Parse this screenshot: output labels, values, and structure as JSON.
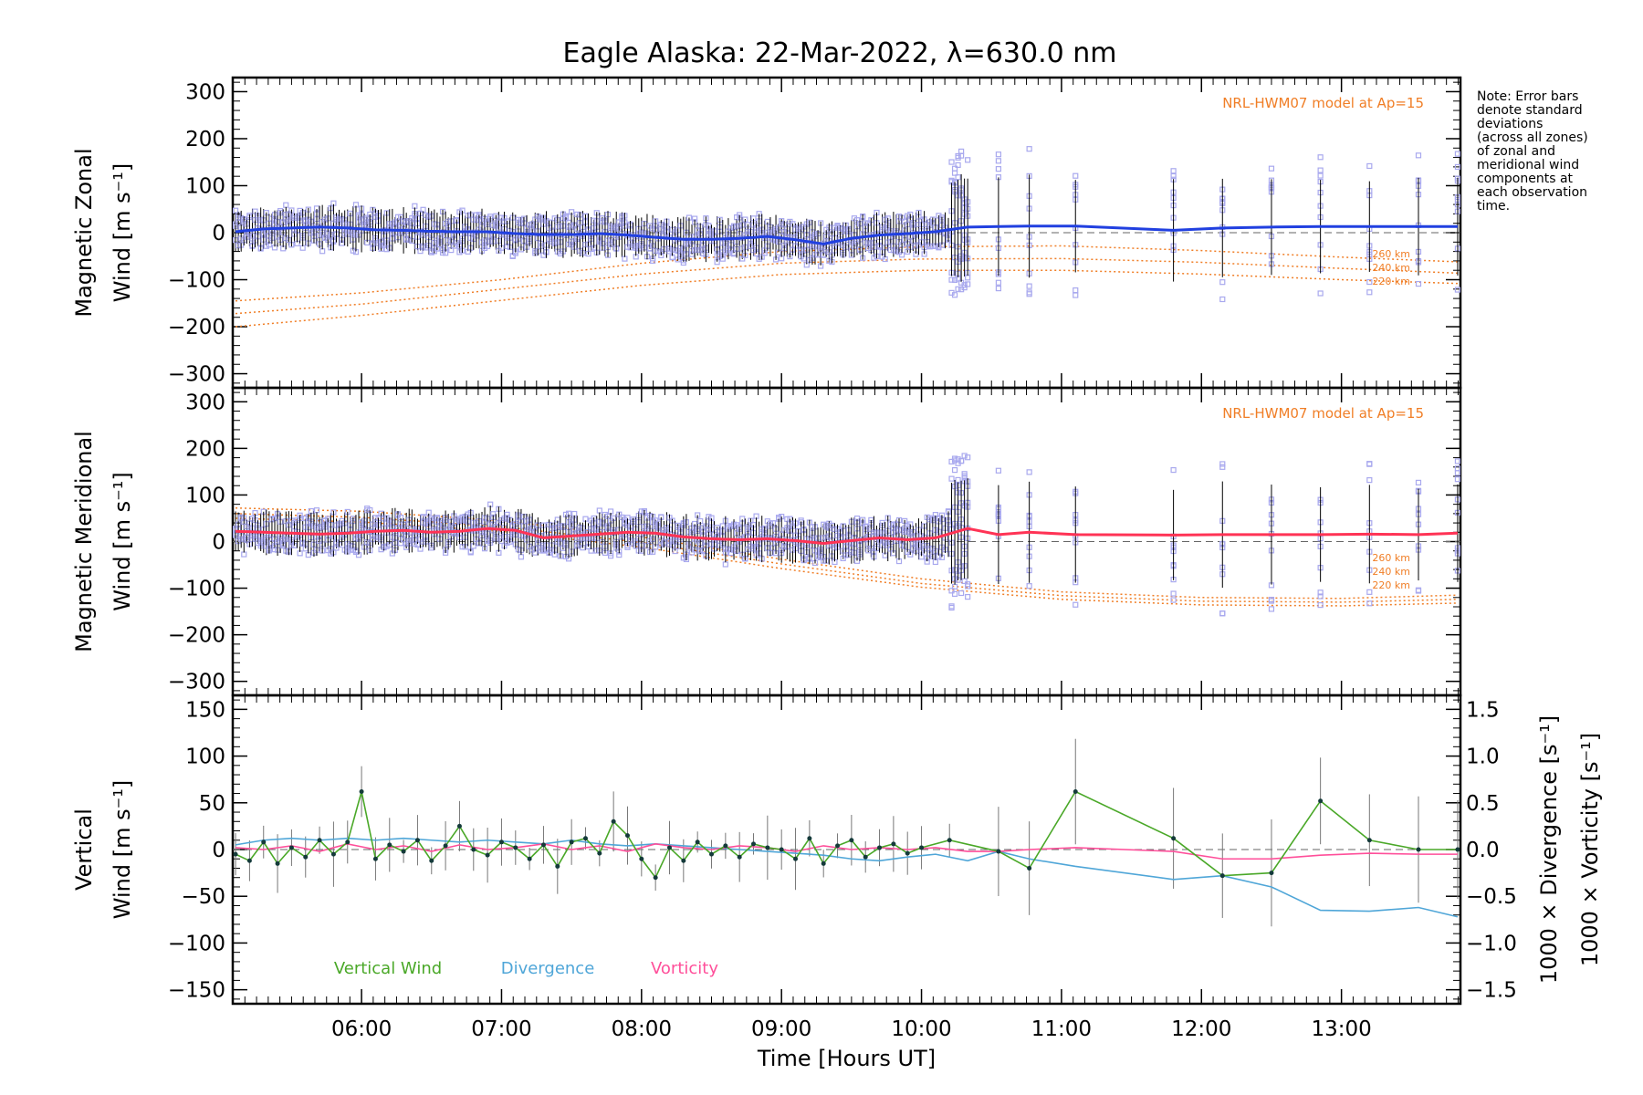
{
  "title": "Eagle Alaska: 22-Mar-2022, λ=630.0 nm",
  "note": [
    "Note: Error bars",
    "denote standard",
    "deviations",
    "(across all zones)",
    "of zonal and",
    "meridional wind",
    "components at",
    "each observation",
    "time."
  ],
  "colors": {
    "zonal": "#2140e0",
    "meridional": "#ff3355",
    "vertical": "#4aa828",
    "divergence": "#4fa6d8",
    "vorticity": "#ff4f9a",
    "model": "#f07e26",
    "zone_points": "#a9a9ee",
    "errorbar": "#000000"
  },
  "chart_data": [
    {
      "type": "line",
      "panel": "zonal",
      "ylabel_line1": "Magnetic Zonal",
      "ylabel_line2": "Wind [m s⁻¹]",
      "ylim": [
        -330,
        330
      ],
      "yticks": [
        -300,
        -200,
        -100,
        0,
        100,
        200,
        300
      ],
      "model_label": "NRL-HWM07 model at Ap=15",
      "model_series": [
        {
          "name": "260 km",
          "x": [
            5.1,
            6.0,
            7.0,
            8.0,
            9.0,
            10.0,
            11.0,
            12.0,
            13.0,
            13.83
          ],
          "values": [
            -145,
            -128,
            -100,
            -65,
            -40,
            -30,
            -28,
            -38,
            -52,
            -62
          ]
        },
        {
          "name": "240 km",
          "x": [
            5.1,
            6.0,
            7.0,
            8.0,
            9.0,
            10.0,
            11.0,
            12.0,
            13.0,
            13.83
          ],
          "values": [
            -172,
            -152,
            -120,
            -88,
            -65,
            -56,
            -55,
            -63,
            -76,
            -86
          ]
        },
        {
          "name": "220 km",
          "x": [
            5.1,
            6.0,
            7.0,
            8.0,
            9.0,
            10.0,
            11.0,
            12.0,
            13.0,
            13.83
          ],
          "values": [
            -200,
            -176,
            -144,
            -112,
            -89,
            -80,
            -80,
            -88,
            -100,
            -108
          ]
        }
      ],
      "series": [
        {
          "name": "",
          "x": [
            5.1,
            5.3,
            5.5,
            5.7,
            5.9,
            6.1,
            6.3,
            6.5,
            6.7,
            6.9,
            7.1,
            7.3,
            7.5,
            7.7,
            7.9,
            8.1,
            8.3,
            8.5,
            8.7,
            8.9,
            9.1,
            9.3,
            9.5,
            9.7,
            9.9,
            10.1,
            10.33,
            10.55,
            10.77,
            11.1,
            11.8,
            12.15,
            12.5,
            12.85,
            13.2,
            13.55,
            13.83
          ],
          "values": [
            2,
            8,
            10,
            12,
            10,
            6,
            5,
            3,
            2,
            2,
            -2,
            -4,
            -4,
            -2,
            -5,
            -10,
            -14,
            -14,
            -12,
            -8,
            -15,
            -24,
            -12,
            -5,
            -2,
            2,
            12,
            13,
            14,
            14,
            5,
            10,
            12,
            13,
            13,
            13,
            13
          ]
        }
      ]
    },
    {
      "type": "line",
      "panel": "meridional",
      "ylabel_line1": "Magnetic Meridional",
      "ylabel_line2": "Wind [m s⁻¹]",
      "ylim": [
        -330,
        330
      ],
      "yticks": [
        -300,
        -200,
        -100,
        0,
        100,
        200,
        300
      ],
      "model_label": "NRL-HWM07 model at Ap=15",
      "model_series": [
        {
          "name": "260 km",
          "x": [
            5.1,
            6.0,
            7.0,
            8.0,
            9.0,
            10.0,
            11.0,
            12.0,
            13.0,
            13.83
          ],
          "values": [
            72,
            65,
            45,
            10,
            -38,
            -80,
            -108,
            -120,
            -122,
            -115
          ]
        },
        {
          "name": "240 km",
          "x": [
            5.1,
            6.0,
            7.0,
            8.0,
            9.0,
            10.0,
            11.0,
            12.0,
            13.0,
            13.83
          ],
          "values": [
            60,
            52,
            32,
            -2,
            -48,
            -90,
            -116,
            -128,
            -130,
            -124
          ]
        },
        {
          "name": "220 km",
          "x": [
            5.1,
            6.0,
            7.0,
            8.0,
            9.0,
            10.0,
            11.0,
            12.0,
            13.0,
            13.83
          ],
          "values": [
            50,
            42,
            22,
            -12,
            -58,
            -98,
            -124,
            -136,
            -138,
            -132
          ]
        }
      ],
      "series": [
        {
          "name": "",
          "x": [
            5.1,
            5.3,
            5.5,
            5.7,
            5.9,
            6.1,
            6.3,
            6.5,
            6.7,
            6.9,
            7.1,
            7.3,
            7.5,
            7.7,
            7.9,
            8.1,
            8.3,
            8.5,
            8.7,
            8.9,
            9.1,
            9.3,
            9.5,
            9.7,
            9.9,
            10.1,
            10.33,
            10.55,
            10.77,
            11.1,
            11.8,
            12.15,
            12.5,
            12.85,
            13.2,
            13.55,
            13.83
          ],
          "values": [
            22,
            20,
            18,
            16,
            18,
            22,
            24,
            20,
            22,
            28,
            24,
            8,
            12,
            16,
            20,
            18,
            10,
            6,
            4,
            6,
            2,
            -4,
            2,
            8,
            4,
            8,
            28,
            15,
            20,
            15,
            14,
            15,
            15,
            15,
            16,
            15,
            18
          ]
        }
      ]
    },
    {
      "type": "line",
      "panel": "vertical",
      "ylabel_line1": "Vertical",
      "ylabel_line2": "Wind [m s⁻¹]",
      "y2label_div": "1000 × Divergence [s⁻¹]",
      "y2label_vor": "1000 × Vorticity [s⁻¹]",
      "ylim": [
        -165,
        165
      ],
      "yticks": [
        -150,
        -100,
        -50,
        0,
        50,
        100,
        150
      ],
      "y2lim": [
        -1.65,
        1.65
      ],
      "y2ticks": [
        -1.5,
        -1.0,
        -0.5,
        0.0,
        0.5,
        1.0,
        1.5
      ],
      "legend": [
        "Vertical Wind",
        "Divergence",
        "Vorticity"
      ],
      "xlabel": "Time [Hours UT]",
      "xlim": [
        5.08,
        13.85
      ],
      "xticks": [
        6,
        7,
        8,
        9,
        10,
        11,
        12,
        13
      ],
      "xticklabels": [
        "06:00",
        "07:00",
        "08:00",
        "09:00",
        "10:00",
        "11:00",
        "12:00",
        "13:00"
      ],
      "series": [
        {
          "name": "Vertical Wind",
          "x": [
            5.1,
            5.2,
            5.3,
            5.4,
            5.5,
            5.6,
            5.7,
            5.8,
            5.9,
            6.0,
            6.1,
            6.2,
            6.3,
            6.4,
            6.5,
            6.6,
            6.7,
            6.8,
            6.9,
            7.0,
            7.1,
            7.2,
            7.3,
            7.4,
            7.5,
            7.6,
            7.7,
            7.8,
            7.9,
            8.0,
            8.1,
            8.2,
            8.3,
            8.4,
            8.5,
            8.6,
            8.7,
            8.8,
            8.9,
            9.0,
            9.1,
            9.2,
            9.3,
            9.4,
            9.5,
            9.6,
            9.7,
            9.8,
            9.9,
            10.0,
            10.2,
            10.55,
            10.77,
            11.1,
            11.8,
            12.15,
            12.5,
            12.85,
            13.2,
            13.55,
            13.83
          ],
          "values": [
            -5,
            -12,
            8,
            -15,
            2,
            -8,
            10,
            -5,
            8,
            62,
            -10,
            5,
            -2,
            10,
            -12,
            4,
            25,
            0,
            -6,
            8,
            2,
            -10,
            5,
            -18,
            8,
            12,
            -4,
            30,
            15,
            -10,
            -30,
            2,
            -12,
            8,
            -5,
            4,
            -8,
            6,
            2,
            0,
            -10,
            12,
            -15,
            4,
            10,
            -8,
            2,
            6,
            -4,
            2,
            10,
            -2,
            -20,
            62,
            12,
            -28,
            -25,
            52,
            10,
            0,
            0
          ]
        },
        {
          "name": "Divergence",
          "x": [
            5.1,
            5.3,
            5.5,
            5.7,
            5.9,
            6.1,
            6.3,
            6.5,
            6.7,
            6.9,
            7.1,
            7.3,
            7.5,
            7.7,
            7.9,
            8.1,
            8.3,
            8.5,
            8.7,
            8.9,
            9.1,
            9.3,
            9.5,
            9.7,
            9.9,
            10.1,
            10.33,
            10.55,
            10.77,
            11.1,
            11.8,
            12.15,
            12.5,
            12.85,
            13.2,
            13.55,
            13.83
          ],
          "values": [
            0.05,
            0.1,
            0.12,
            0.1,
            0.12,
            0.1,
            0.12,
            0.1,
            0.08,
            0.1,
            0.08,
            0.06,
            0.1,
            0.06,
            0.04,
            0.06,
            0.04,
            0.02,
            0.0,
            -0.02,
            -0.04,
            -0.06,
            -0.1,
            -0.12,
            -0.08,
            -0.05,
            -0.12,
            -0.02,
            -0.1,
            -0.18,
            -0.32,
            -0.28,
            -0.4,
            -0.65,
            -0.66,
            -0.62,
            -0.72
          ]
        },
        {
          "name": "Vorticity",
          "x": [
            5.1,
            5.3,
            5.5,
            5.7,
            5.9,
            6.1,
            6.3,
            6.5,
            6.7,
            6.9,
            7.1,
            7.3,
            7.5,
            7.7,
            7.9,
            8.1,
            8.3,
            8.5,
            8.7,
            8.9,
            9.1,
            9.3,
            9.5,
            9.7,
            9.9,
            10.1,
            10.33,
            10.55,
            10.77,
            11.1,
            11.8,
            12.15,
            12.5,
            12.85,
            13.2,
            13.55,
            13.83
          ],
          "values": [
            0.02,
            0.0,
            0.04,
            -0.02,
            0.06,
            0.0,
            0.04,
            -0.02,
            0.05,
            0.0,
            0.02,
            0.06,
            0.0,
            0.04,
            -0.02,
            0.06,
            0.02,
            0.0,
            0.04,
            0.02,
            -0.02,
            0.04,
            0.0,
            0.02,
            0.0,
            0.02,
            -0.02,
            -0.02,
            0.0,
            0.02,
            -0.02,
            -0.1,
            -0.1,
            -0.06,
            -0.04,
            -0.05,
            -0.05
          ]
        }
      ]
    }
  ]
}
